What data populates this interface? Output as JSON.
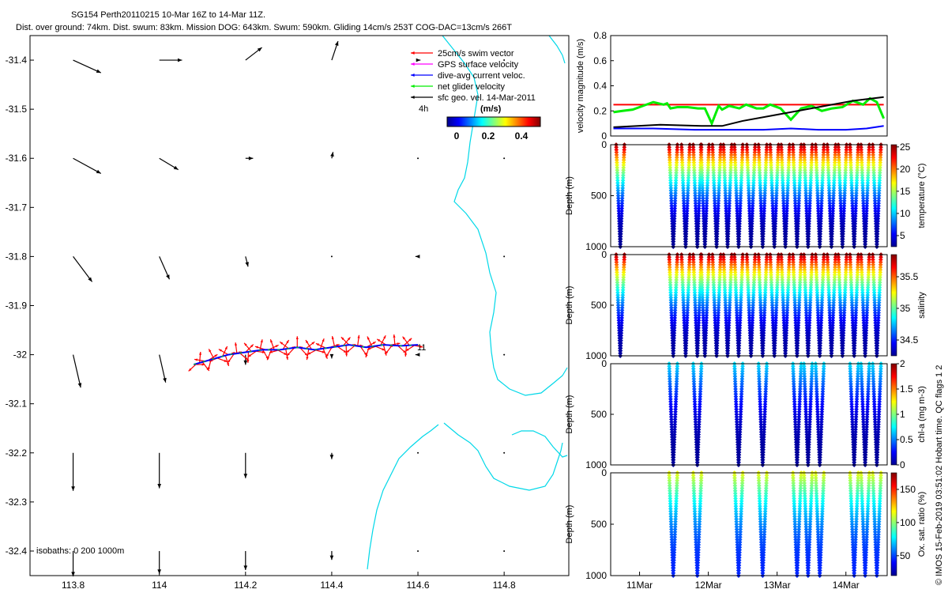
{
  "header": {
    "title": "SG154 Perth20110215 10-Mar 16Z to 14-Mar 11Z.",
    "summary": "Dist. over ground: 74km. Dist. swum: 83km. Mission DOG: 643km. Swum: 590km. Gliding 14cm/s 253T COG-DAC=13cm/s 266T"
  },
  "credit": "© IMOS 15-Feb-2019 03:51:02 Hobart time. QC flags 1  2",
  "chart_data": [
    {
      "id": "map",
      "type": "scatter",
      "title": "Glider track and velocity vectors",
      "xlim": [
        113.7,
        114.95
      ],
      "ylim": [
        -32.45,
        -31.35
      ],
      "xticks": [
        113.8,
        114,
        114.2,
        114.4,
        114.6,
        114.8
      ],
      "xtick_labels": [
        "113.8",
        "114",
        "114.2",
        "114.4",
        "114.6",
        "114.8"
      ],
      "yticks": [
        -31.4,
        -31.5,
        -31.6,
        -31.7,
        -31.8,
        -31.9,
        -32,
        -32.1,
        -32.2,
        -32.3,
        -32.4
      ],
      "ytick_labels": [
        "-31.4",
        "-31.5",
        "-31.6",
        "-31.7",
        "-31.8",
        "-31.9",
        "-32",
        "-32.1",
        "-32.2",
        "-32.3",
        "-32.4"
      ],
      "legend": {
        "entries": [
          {
            "label": "25cm/s swim vector",
            "color": "#ff0000"
          },
          {
            "label": "GPS surface velocity",
            "color": "#ff00ff"
          },
          {
            "label": "dive-avg current veloc.",
            "color": "#0000ff"
          },
          {
            "label": "net glider velocity",
            "color": "#00ee00"
          },
          {
            "label": "sfc geo. vel. 14-Mar-2011",
            "color": "#000000"
          }
        ],
        "interval_label": "4h",
        "units_label": "(m/s)",
        "colorbar_ticks": [
          "0",
          "0.2",
          "0.4"
        ]
      },
      "end_label": "11",
      "isobath_label": "isobaths:  0    200   1000m",
      "track": {
        "lon": [
          114.08,
          114.12,
          114.16,
          114.2,
          114.24,
          114.28,
          114.32,
          114.36,
          114.4,
          114.44,
          114.48,
          114.52,
          114.56,
          114.6
        ],
        "lat": [
          -32.02,
          -32.01,
          -32.0,
          -31.995,
          -31.99,
          -31.99,
          -31.985,
          -31.99,
          -31.985,
          -31.98,
          -31.985,
          -31.98,
          -31.982,
          -31.98
        ]
      },
      "geo_vectors": {
        "lon": [
          113.8,
          114.0,
          114.2,
          114.4,
          114.6,
          114.8
        ],
        "lat": [
          -31.4,
          -31.6,
          -31.8,
          -32.0,
          -32.2,
          -32.4
        ],
        "u": [
          [
            0.22,
            0.18,
            0.13,
            0.05,
            0.02,
            0.0
          ],
          [
            0.22,
            0.15,
            0.06,
            0.01,
            0.0,
            0.0
          ],
          [
            0.15,
            0.08,
            0.02,
            0.0,
            -0.02,
            0.0
          ],
          [
            0.06,
            0.05,
            0.0,
            0.0,
            -0.02,
            0.0
          ],
          [
            0.0,
            0.0,
            0.0,
            0.0,
            0.0,
            0.0
          ],
          [
            0.0,
            0.0,
            0.0,
            0.0,
            0.0,
            0.0
          ]
        ],
        "v": [
          [
            -0.1,
            0.0,
            0.1,
            0.15,
            0.0,
            0.0
          ],
          [
            -0.12,
            -0.09,
            0.0,
            0.05,
            0.0,
            0.0
          ],
          [
            -0.2,
            -0.18,
            -0.08,
            0.0,
            0.0,
            0.0
          ],
          [
            -0.26,
            -0.22,
            -0.08,
            -0.03,
            0.0,
            0.0
          ],
          [
            -0.3,
            -0.28,
            -0.2,
            -0.05,
            0.0,
            0.0
          ],
          [
            -0.2,
            -0.18,
            -0.15,
            -0.07,
            0.0,
            0.0
          ]
        ]
      }
    },
    {
      "id": "velocity",
      "type": "line",
      "ylabel": "velocity magnitude (m/s)",
      "xlim": [
        10.58,
        14.6
      ],
      "ylim": [
        0,
        0.8
      ],
      "yticks": [
        0,
        0.2,
        0.4,
        0.6,
        0.8
      ],
      "ytick_labels": [
        "0",
        "0.2",
        "0.4",
        "0.6",
        "0.8"
      ],
      "series": [
        {
          "name": "swim vector",
          "color": "#ff0000",
          "x": [
            10.62,
            14.55
          ],
          "y": [
            0.25,
            0.25
          ]
        },
        {
          "name": "net glider velocity",
          "color": "#00ee00",
          "x": [
            10.62,
            10.75,
            10.9,
            11.05,
            11.2,
            11.35,
            11.4,
            11.45,
            11.55,
            11.7,
            11.85,
            11.95,
            12.05,
            12.15,
            12.2,
            12.3,
            12.45,
            12.55,
            12.7,
            12.8,
            12.9,
            13.05,
            13.2,
            13.35,
            13.5,
            13.65,
            13.8,
            13.95,
            14.1,
            14.25,
            14.35,
            14.45,
            14.55
          ],
          "y": [
            0.19,
            0.2,
            0.21,
            0.24,
            0.27,
            0.25,
            0.26,
            0.22,
            0.23,
            0.23,
            0.22,
            0.22,
            0.1,
            0.24,
            0.21,
            0.24,
            0.22,
            0.25,
            0.22,
            0.22,
            0.25,
            0.22,
            0.13,
            0.22,
            0.24,
            0.2,
            0.22,
            0.23,
            0.28,
            0.25,
            0.3,
            0.27,
            0.14
          ]
        },
        {
          "name": "dive-avg current",
          "color": "#000000",
          "x": [
            10.62,
            11.3,
            11.9,
            12.2,
            12.5,
            12.9,
            13.3,
            13.7,
            14.1,
            14.55
          ],
          "y": [
            0.07,
            0.09,
            0.08,
            0.08,
            0.12,
            0.16,
            0.2,
            0.24,
            0.28,
            0.31
          ]
        },
        {
          "name": "surface current",
          "color": "#0000ff",
          "x": [
            10.62,
            11.2,
            11.8,
            12.3,
            12.8,
            13.2,
            13.6,
            14.0,
            14.3,
            14.55
          ],
          "y": [
            0.06,
            0.06,
            0.05,
            0.05,
            0.05,
            0.06,
            0.05,
            0.05,
            0.06,
            0.08
          ]
        }
      ]
    },
    {
      "id": "temperature",
      "type": "heatmap",
      "ylabel": "Depth (m)",
      "clabel": "temperature (°C)",
      "cticks": [
        "5",
        "10",
        "15",
        "20",
        "25"
      ],
      "ctick_values": [
        5,
        10,
        15,
        20,
        25
      ],
      "clim": [
        2.5,
        25.5
      ],
      "ylim": [
        1000,
        0
      ],
      "yticks": [
        "0",
        "500",
        "1000"
      ],
      "profile_days": [
        10.72,
        11.49,
        11.67,
        11.84,
        11.95,
        12.12,
        12.28,
        12.44,
        12.62,
        12.79,
        12.96,
        13.12,
        13.29,
        13.45,
        13.62,
        13.79,
        13.95,
        14.12,
        14.28,
        14.45
      ],
      "profile_half_width_days": 0.06,
      "surface_value": 25,
      "bottom_value": 3
    },
    {
      "id": "salinity",
      "type": "heatmap",
      "ylabel": "Depth (m)",
      "clabel": "salinity",
      "cticks": [
        "34.5",
        "35",
        "35.5"
      ],
      "ctick_values": [
        34.5,
        35,
        35.5
      ],
      "clim": [
        34.25,
        35.85
      ],
      "ylim": [
        1000,
        0
      ],
      "yticks": [
        "0",
        "500",
        "1000"
      ],
      "profile_days": [
        10.72,
        11.49,
        11.67,
        11.84,
        11.95,
        12.12,
        12.28,
        12.44,
        12.62,
        12.79,
        12.96,
        13.12,
        13.29,
        13.45,
        13.62,
        13.79,
        13.95,
        14.12,
        14.28,
        14.45
      ],
      "profile_half_width_days": 0.06,
      "surface_value": 35.8,
      "bottom_value": 34.3
    },
    {
      "id": "chla",
      "type": "heatmap",
      "ylabel": "Depth (m)",
      "clabel": "chl-a (mg m-3)",
      "cticks": [
        "0",
        "0.5",
        "1",
        "1.5",
        "2"
      ],
      "ctick_values": [
        0,
        0.5,
        1,
        1.5,
        2
      ],
      "clim": [
        0,
        2
      ],
      "ylim": [
        1000,
        0
      ],
      "yticks": [
        "0",
        "500",
        "1000"
      ],
      "profile_days": [
        11.49,
        11.84,
        12.44,
        12.79,
        13.29,
        13.45,
        13.62,
        14.12,
        14.28,
        14.45
      ],
      "profile_half_width_days": 0.06,
      "surface_value": 0.7,
      "bottom_value": 0.05
    },
    {
      "id": "oxygen",
      "type": "heatmap",
      "ylabel": "Depth (m)",
      "clabel": "Ox. sat. ratio (%)",
      "cticks": [
        "50",
        "100",
        "150"
      ],
      "ctick_values": [
        50,
        100,
        150
      ],
      "clim": [
        20,
        175
      ],
      "ylim": [
        1000,
        0
      ],
      "yticks": [
        "0",
        "500",
        "1000"
      ],
      "profile_days": [
        11.49,
        11.84,
        12.44,
        12.79,
        13.29,
        13.45,
        13.62,
        14.12,
        14.28,
        14.45
      ],
      "profile_half_width_days": 0.06,
      "surface_value": 115,
      "bottom_value": 45
    }
  ],
  "time_axis": {
    "xlim": [
      10.58,
      14.6
    ],
    "ticks": [
      11,
      12,
      13,
      14
    ],
    "tick_labels": [
      "11Mar",
      "12Mar",
      "13Mar",
      "14Mar"
    ]
  }
}
